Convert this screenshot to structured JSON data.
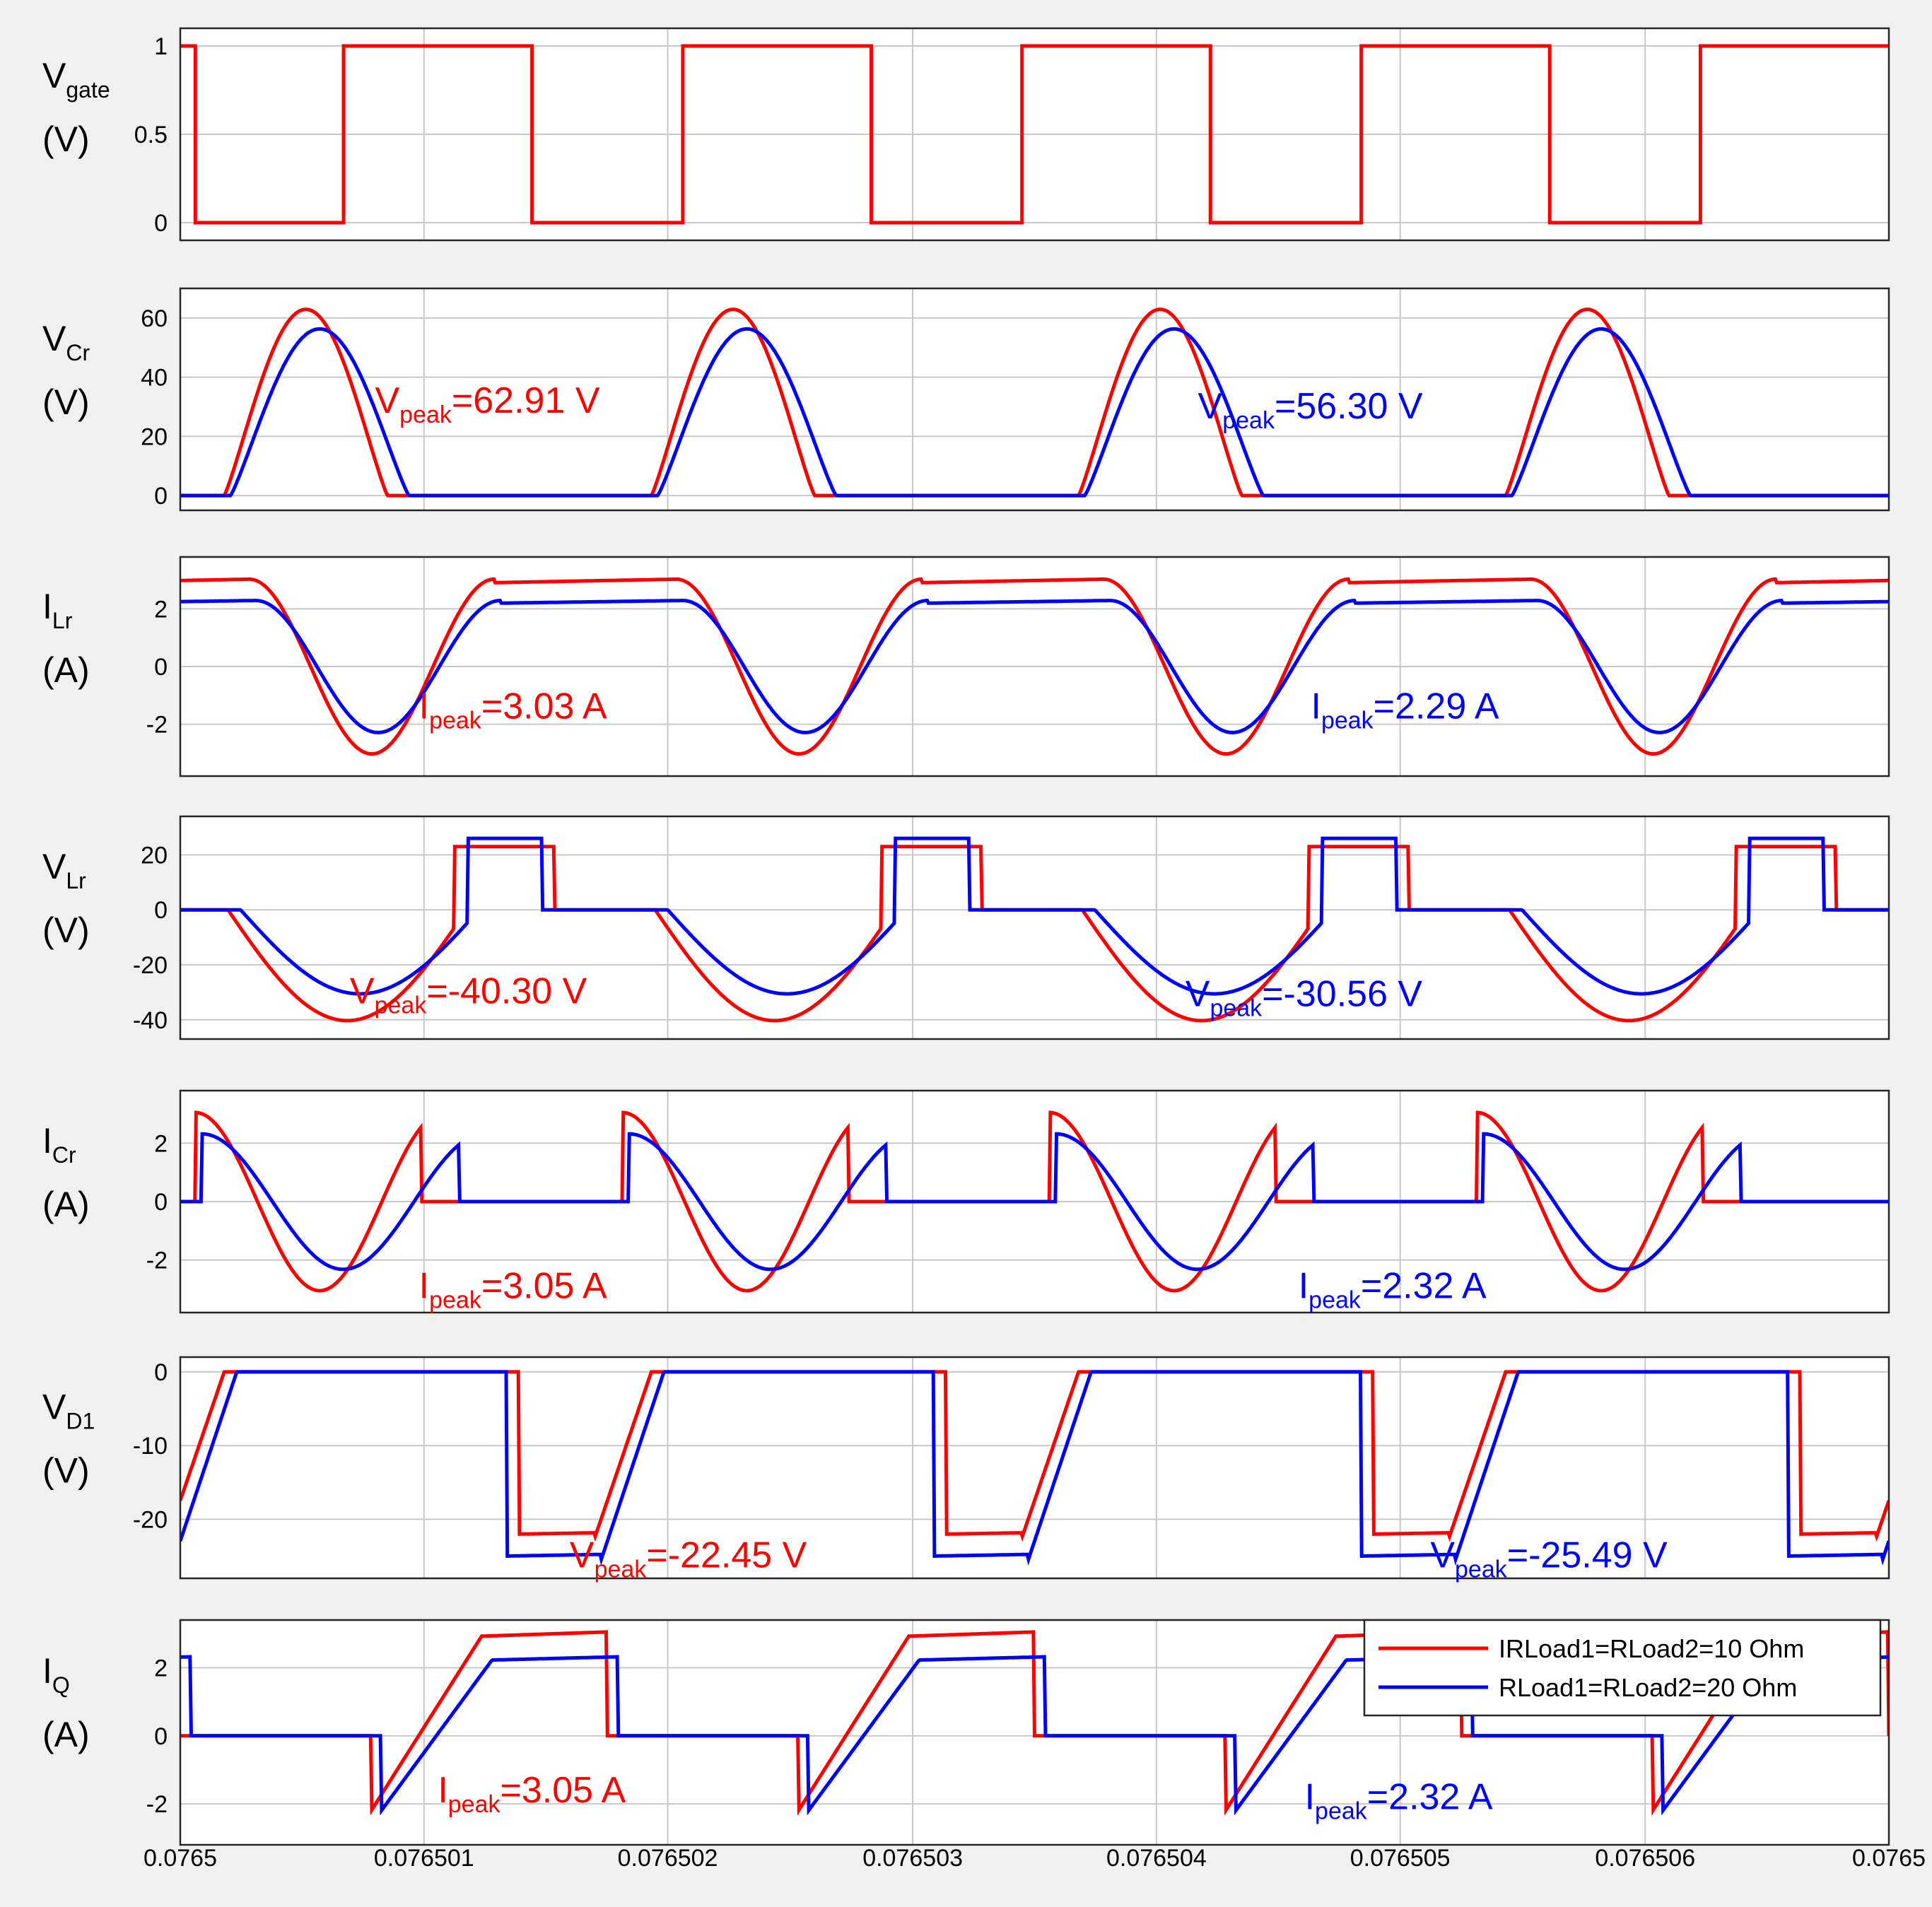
{
  "chart_data": {
    "type": "line",
    "x_ticks": [
      "0.0765",
      "0.076501",
      "0.076502",
      "0.076503",
      "0.076504",
      "0.076505",
      "0.076506",
      "0.0765"
    ],
    "xlim": [
      0.0765,
      0.076507
    ],
    "legend": {
      "position": "top-right of bottom panel",
      "entries": [
        {
          "label": "IRLoad1=RLoad2=10 Ohm",
          "color": "#ff0000"
        },
        {
          "label": "RLoad1=RLoad2=20 Ohm",
          "color": "#0000ff"
        }
      ]
    },
    "colors": {
      "series1": "#ff0000",
      "series2": "#0000ff"
    },
    "panels": [
      {
        "id": "vgate",
        "label_main": "V",
        "label_sub": "gate",
        "unit": "(V)",
        "yticks": [
          0,
          0.5,
          1
        ],
        "ytick_labels": [
          "0",
          "0.5",
          "1"
        ],
        "ylim": [
          -0.1,
          1.1
        ],
        "series": [
          {
            "name": "Vgate",
            "color": "#ff0000",
            "points": [
              [
                0,
                1
              ],
              [
                0.12,
                1
              ],
              [
                0.12,
                0
              ],
              [
                1.3,
                0
              ],
              [
                1.3,
                1
              ],
              [
                2.8,
                1
              ],
              [
                2.8,
                0
              ],
              [
                4.0,
                0
              ],
              [
                4.0,
                1
              ],
              [
                5.5,
                1
              ],
              [
                5.5,
                0
              ],
              [
                6.7,
                0
              ],
              [
                6.7,
                1
              ],
              [
                8.2,
                1
              ],
              [
                8.2,
                0
              ],
              [
                9.4,
                0
              ],
              [
                9.4,
                1
              ],
              [
                10.9,
                1
              ],
              [
                10.9,
                0
              ],
              [
                12.1,
                0
              ],
              [
                12.1,
                1
              ],
              [
                13.6,
                1
              ]
            ]
          }
        ],
        "annotations": []
      },
      {
        "id": "vcr",
        "label_main": "V",
        "label_sub": "Cr",
        "unit": "(V)",
        "yticks": [
          0,
          20,
          40,
          60
        ],
        "ytick_labels": [
          "0",
          "20",
          "40",
          "60"
        ],
        "ylim": [
          -5,
          70
        ],
        "wave": {
          "kind": "hump",
          "t0": [
            0.2,
            3.5,
            6.8,
            10.1
          ],
          "red_peak": 62.91,
          "red_width": 1.3,
          "blue_peak": 56.3,
          "blue_width": 1.42,
          "blue_delay": 0.0
        },
        "annotations": [
          {
            "main": "V",
            "sub": "peak",
            "rest": "=62.91 V",
            "color": "#ff0000",
            "at": [
              1.55,
              28
            ]
          },
          {
            "main": "V",
            "sub": "peak",
            "rest": "=56.30 V",
            "color": "#0000ff",
            "at": [
              8.1,
              26
            ]
          }
        ]
      },
      {
        "id": "ilr",
        "label_main": "I",
        "label_sub": "Lr",
        "unit": "(A)",
        "yticks": [
          -2,
          0,
          2
        ],
        "ytick_labels": [
          "-2",
          "0",
          "2"
        ],
        "ylim": [
          -3.8,
          3.8
        ],
        "annotations": [
          {
            "main": "I",
            "sub": "peak",
            "rest": "=3.03 A",
            "color": "#ff0000",
            "at": [
              1.9,
              -1.8
            ]
          },
          {
            "main": "I",
            "sub": "peak",
            "rest": "=2.29 A",
            "color": "#0000ff",
            "at": [
              9.0,
              -1.8
            ]
          }
        ]
      },
      {
        "id": "vlr",
        "label_main": "V",
        "label_sub": "Lr",
        "unit": "(V)",
        "yticks": [
          -40,
          -20,
          0,
          20
        ],
        "ytick_labels": [
          "-40",
          "-20",
          "0",
          "20"
        ],
        "ylim": [
          -47,
          34
        ],
        "annotations": [
          {
            "main": "V",
            "sub": "peak",
            "rest": "=-40.30 V",
            "color": "#ff0000",
            "at": [
              1.35,
              -34
            ]
          },
          {
            "main": "V",
            "sub": "peak",
            "rest": "=-30.56 V",
            "color": "#0000ff",
            "at": [
              8.0,
              -35
            ]
          }
        ]
      },
      {
        "id": "icr",
        "label_main": "I",
        "label_sub": "Cr",
        "unit": "(A)",
        "yticks": [
          -2,
          0,
          2
        ],
        "ytick_labels": [
          "-2",
          "0",
          "2"
        ],
        "ylim": [
          -3.8,
          3.8
        ],
        "annotations": [
          {
            "main": "I",
            "sub": "peak",
            "rest": "=3.05 A",
            "color": "#ff0000",
            "at": [
              1.9,
              -3.3
            ]
          },
          {
            "main": "I",
            "sub": "peak",
            "rest": "=2.32 A",
            "color": "#0000ff",
            "at": [
              8.9,
              -3.3
            ]
          }
        ]
      },
      {
        "id": "vd1",
        "label_main": "V",
        "label_sub": "D1",
        "unit": "(V)",
        "yticks": [
          -20,
          -10,
          0
        ],
        "ytick_labels": [
          "-20",
          "-10",
          "0"
        ],
        "ylim": [
          -28,
          2
        ],
        "annotations": [
          {
            "main": "V",
            "sub": "peak",
            "rest": "=-22.45 V",
            "color": "#ff0000",
            "at": [
              3.1,
              -26.5
            ]
          },
          {
            "main": "V",
            "sub": "peak",
            "rest": "=-25.49 V",
            "color": "#0000ff",
            "at": [
              9.95,
              -26.5
            ]
          }
        ]
      },
      {
        "id": "iq",
        "label_main": "I",
        "label_sub": "Q",
        "unit": "(A)",
        "yticks": [
          -2,
          0,
          2
        ],
        "ytick_labels": [
          "-2",
          "0",
          "2"
        ],
        "ylim": [
          -3.2,
          3.4
        ],
        "annotations": [
          {
            "main": "I",
            "sub": "peak",
            "rest": "=3.05 A",
            "color": "#ff0000",
            "at": [
              2.05,
              -1.95
            ]
          },
          {
            "main": "I",
            "sub": "peak",
            "rest": "=2.32 A",
            "color": "#0000ff",
            "at": [
              8.95,
              -2.15
            ]
          }
        ]
      }
    ]
  }
}
